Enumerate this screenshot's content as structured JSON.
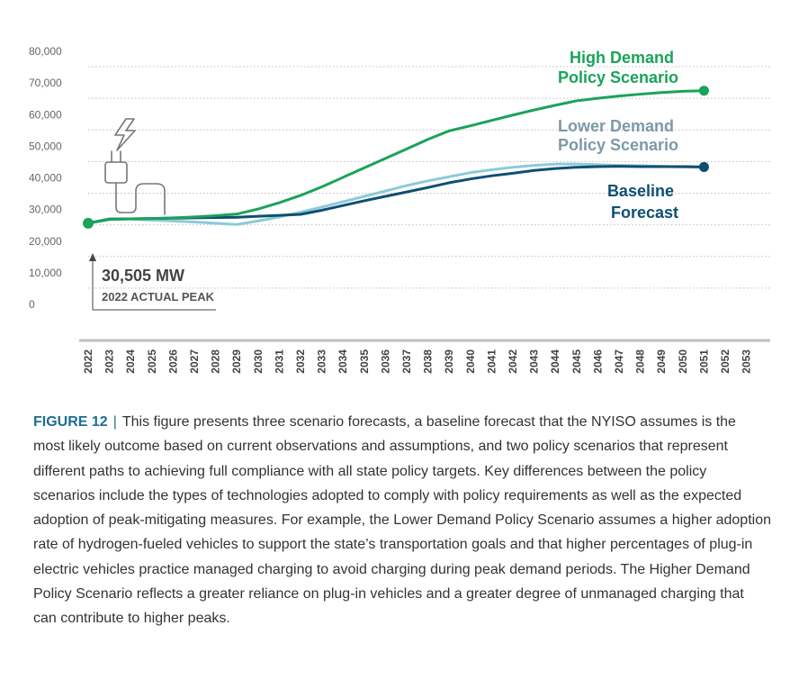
{
  "colors": {
    "high": "#1aa35a",
    "lower": "#8ccad8",
    "baseline": "#0e4f73",
    "lower_label": "#7d98a8",
    "grid": "#bdbdbd",
    "axis": "#bfbfbf",
    "caption_accent": "#1a6e94"
  },
  "icon": "plug-lightning-icon",
  "chart_data": {
    "type": "line",
    "title": "",
    "xlabel": "",
    "ylabel": "",
    "ylim": [
      0,
      80000
    ],
    "y_ticks": [
      "0",
      "10,000",
      "20,000",
      "30,000",
      "40,000",
      "50,000",
      "60,000",
      "70,000",
      "80,000"
    ],
    "x": [
      2022,
      2023,
      2024,
      2025,
      2026,
      2027,
      2028,
      2029,
      2030,
      2031,
      2032,
      2033,
      2034,
      2035,
      2036,
      2037,
      2038,
      2039,
      2040,
      2041,
      2042,
      2043,
      2044,
      2045,
      2046,
      2047,
      2048,
      2049,
      2050,
      2051,
      2052,
      2053
    ],
    "grid": true,
    "series": [
      {
        "name": "High Demand Policy Scenario",
        "label_lines": [
          "High Demand",
          "Policy Scenario"
        ],
        "values": [
          30505,
          31700,
          31900,
          32000,
          32200,
          32500,
          32900,
          33400,
          35000,
          37000,
          39300,
          42000,
          45000,
          48000,
          51000,
          54000,
          57000,
          59700,
          61300,
          63000,
          64700,
          66300,
          67800,
          69200,
          70000,
          70700,
          71300,
          71800,
          72200,
          72400,
          null,
          null
        ]
      },
      {
        "name": "Lower Demand Policy Scenario",
        "label_lines": [
          "Lower Demand",
          "Policy Scenario"
        ],
        "values": [
          30505,
          31900,
          31800,
          31500,
          31200,
          30900,
          30500,
          30100,
          31200,
          32500,
          34000,
          35600,
          37300,
          39000,
          40700,
          42400,
          43900,
          45200,
          46500,
          47400,
          48200,
          48800,
          49200,
          49200,
          49000,
          48800,
          48700,
          48500,
          48300,
          48200,
          null,
          null
        ]
      },
      {
        "name": "Baseline Forecast",
        "label_lines": [
          "Baseline",
          "Forecast"
        ],
        "values": [
          30505,
          31800,
          31900,
          32000,
          32100,
          32200,
          32300,
          32400,
          32700,
          33000,
          33300,
          34600,
          36100,
          37600,
          39000,
          40400,
          41800,
          43300,
          44500,
          45500,
          46300,
          47200,
          47800,
          48200,
          48400,
          48500,
          48400,
          48400,
          48400,
          48300,
          null,
          null
        ]
      }
    ],
    "annotation": {
      "value_text": "30,505 MW",
      "sub_text": "2022 ACTUAL PEAK"
    }
  },
  "caption": {
    "figure": "FIGURE 12",
    "separator": "|",
    "text": "This figure presents three scenario forecasts, a baseline forecast that the NYISO assumes is the most likely outcome based on current observations and assumptions, and two policy scenarios that represent different paths to achieving full compliance with all state policy targets. Key differences between the policy scenarios include the types of technologies adopted to comply with policy requirements as well as the expected adoption of peak-mitigating measures. For example, the Lower Demand Policy Scenario assumes a higher adoption rate of hydrogen-fueled vehicles to support the state’s transportation goals and that higher percentages of plug-in electric vehicles practice managed charging to avoid charging during peak demand periods. The Higher Demand Policy Scenario reflects a greater reliance on plug-in vehicles and a greater degree of unmanaged charging that can contribute to higher peaks."
  }
}
